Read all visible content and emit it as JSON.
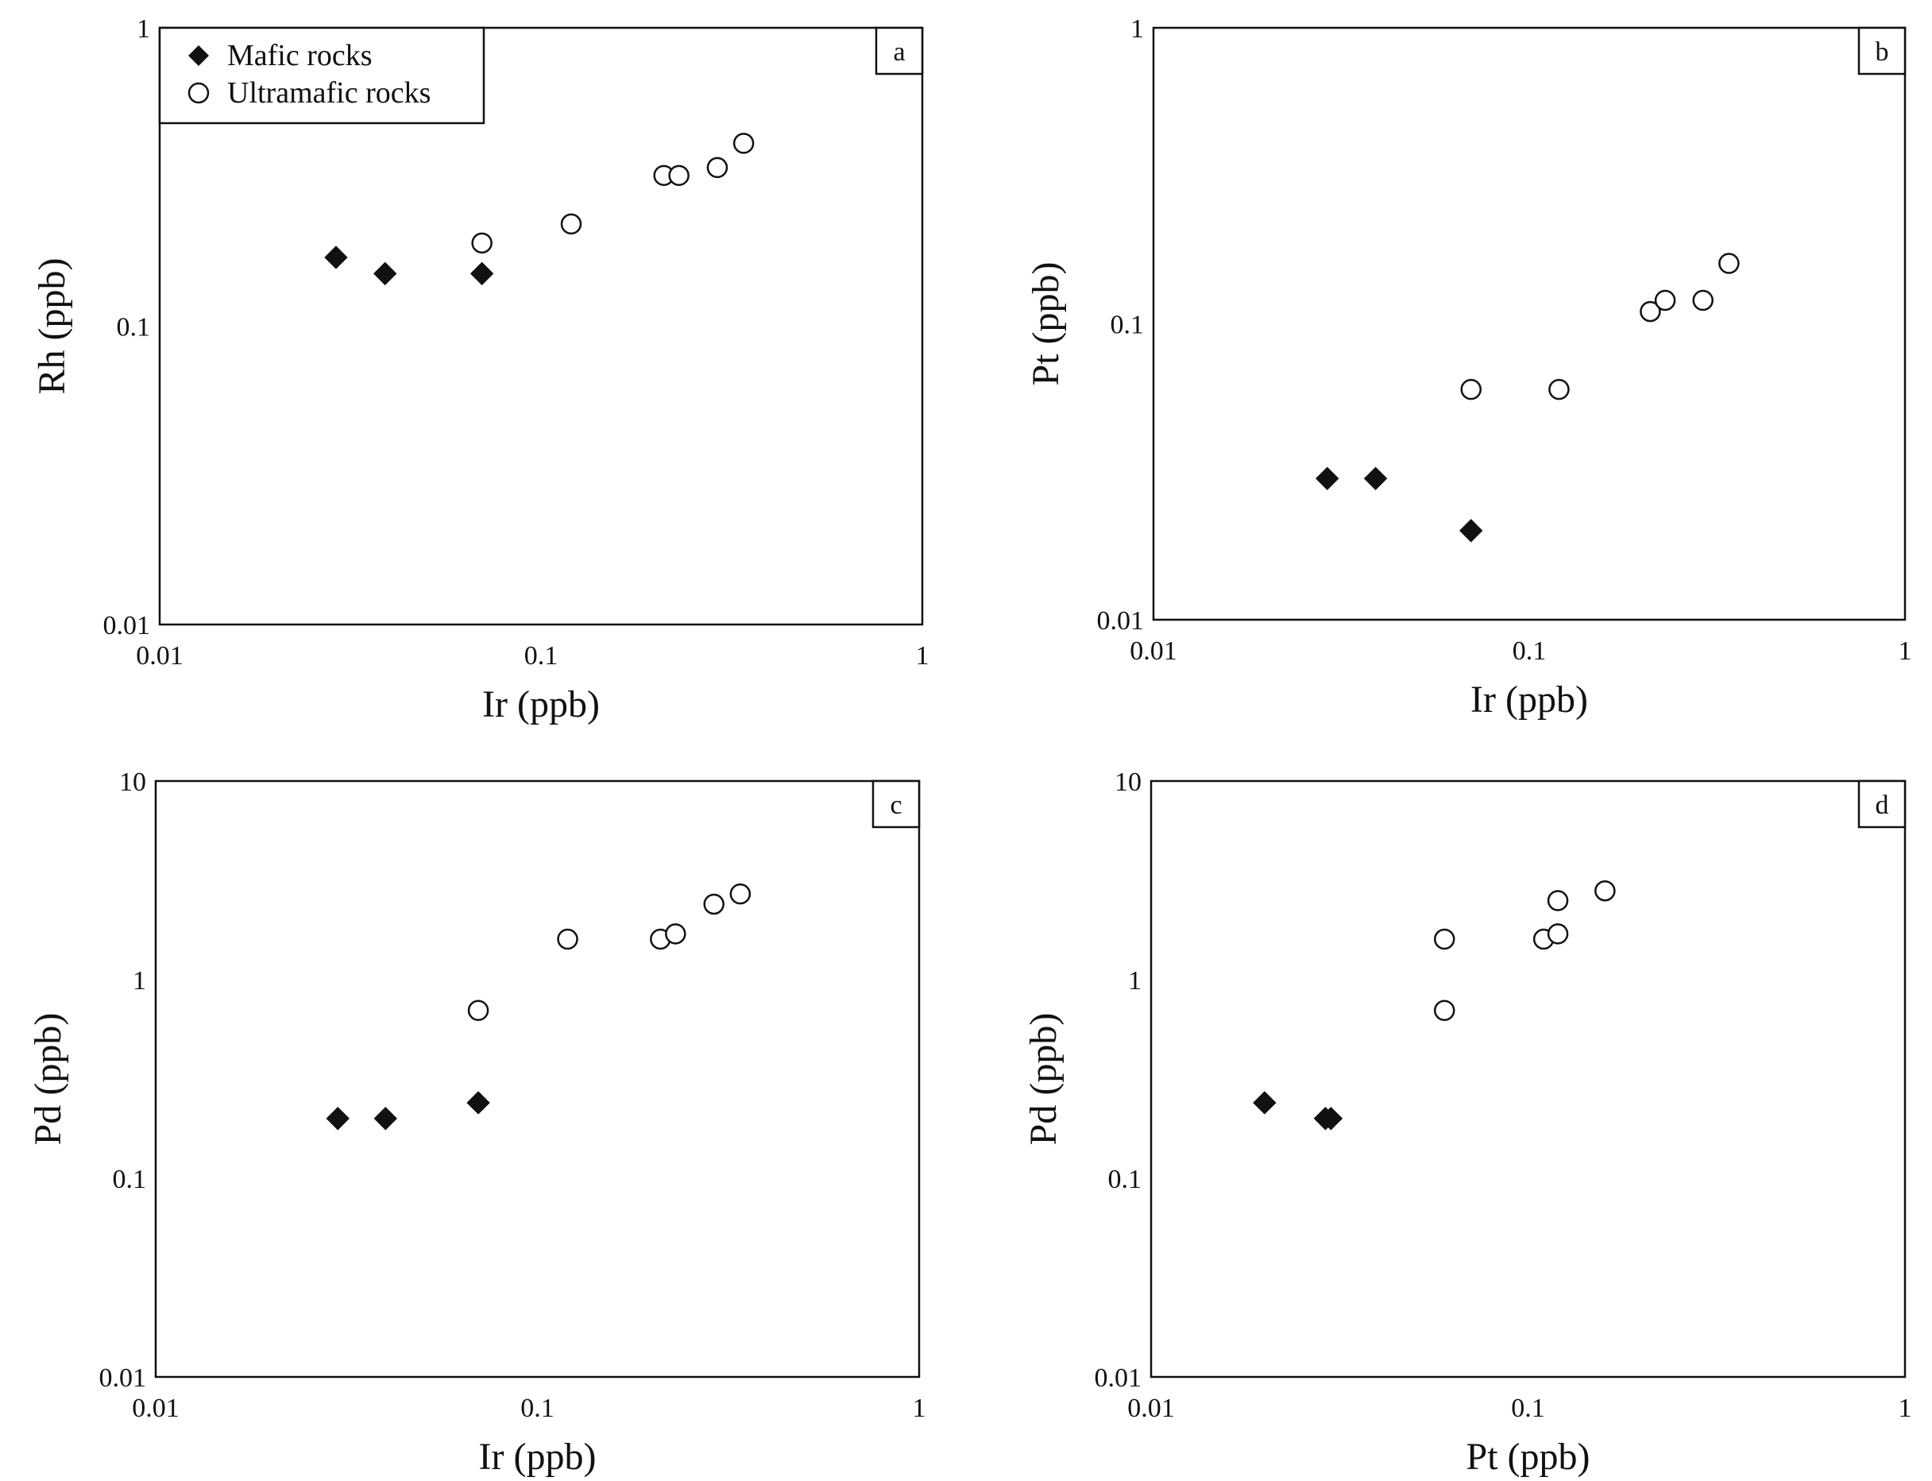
{
  "legend": {
    "mafic_label": "Mafic rocks",
    "ultramafic_label": "Ultramafic rocks"
  },
  "chart_data": [
    {
      "type": "scatter",
      "panel": "a",
      "xlabel": "Ir (ppb)",
      "ylabel": "Rh (ppb)",
      "xscale": "log",
      "yscale": "log",
      "xlim": [
        0.01,
        1
      ],
      "ylim": [
        0.01,
        1
      ],
      "xticks": [
        "0.01",
        "0.1",
        "1"
      ],
      "yticks": [
        "0.01",
        "0.1",
        "1"
      ],
      "legend_position": "top-left",
      "series": [
        {
          "name": "Mafic rocks",
          "marker": "filled-diamond",
          "x": [
            0.029,
            0.039,
            0.07
          ],
          "y": [
            0.17,
            0.15,
            0.15
          ]
        },
        {
          "name": "Ultramafic rocks",
          "marker": "open-circle",
          "x": [
            0.07,
            0.12,
            0.21,
            0.23,
            0.29,
            0.34
          ],
          "y": [
            0.19,
            0.22,
            0.32,
            0.32,
            0.34,
            0.41
          ]
        }
      ]
    },
    {
      "type": "scatter",
      "panel": "b",
      "xlabel": "Ir (ppb)",
      "ylabel": "Pt (ppb)",
      "xscale": "log",
      "yscale": "log",
      "xlim": [
        0.01,
        1
      ],
      "ylim": [
        0.01,
        1
      ],
      "xticks": [
        "0.01",
        "0.1",
        "1"
      ],
      "yticks": [
        "0.01",
        "0.1",
        "1"
      ],
      "series": [
        {
          "name": "Mafic rocks",
          "marker": "filled-diamond",
          "x": [
            0.029,
            0.039,
            0.07
          ],
          "y": [
            0.03,
            0.03,
            0.02
          ]
        },
        {
          "name": "Ultramafic rocks",
          "marker": "open-circle",
          "x": [
            0.07,
            0.12,
            0.21,
            0.23,
            0.29,
            0.34
          ],
          "y": [
            0.06,
            0.06,
            0.11,
            0.12,
            0.12,
            0.16
          ]
        }
      ]
    },
    {
      "type": "scatter",
      "panel": "c",
      "xlabel": "Ir (ppb)",
      "ylabel": "Pd (ppb)",
      "xscale": "log",
      "yscale": "log",
      "xlim": [
        0.01,
        1
      ],
      "ylim": [
        0.01,
        10
      ],
      "xticks": [
        "0.01",
        "0.1",
        "1"
      ],
      "yticks": [
        "0.01",
        "0.1",
        "1",
        "10"
      ],
      "series": [
        {
          "name": "Mafic rocks",
          "marker": "filled-diamond",
          "x": [
            0.03,
            0.04,
            0.07
          ],
          "y": [
            0.2,
            0.2,
            0.24
          ]
        },
        {
          "name": "Ultramafic rocks",
          "marker": "open-circle",
          "x": [
            0.07,
            0.12,
            0.21,
            0.23,
            0.29,
            0.34
          ],
          "y": [
            0.7,
            1.6,
            1.6,
            1.7,
            2.4,
            2.7
          ]
        }
      ]
    },
    {
      "type": "scatter",
      "panel": "d",
      "xlabel": "Pt (ppb)",
      "ylabel": "Pd (ppb)",
      "xscale": "log",
      "yscale": "log",
      "xlim": [
        0.01,
        1
      ],
      "ylim": [
        0.01,
        10
      ],
      "xticks": [
        "0.01",
        "0.1",
        "1"
      ],
      "yticks": [
        "0.01",
        "0.1",
        "1",
        "10"
      ],
      "series": [
        {
          "name": "Mafic rocks",
          "marker": "filled-diamond",
          "x": [
            0.02,
            0.029,
            0.03
          ],
          "y": [
            0.24,
            0.2,
            0.2
          ]
        },
        {
          "name": "Ultramafic rocks",
          "marker": "open-circle",
          "x": [
            0.06,
            0.06,
            0.11,
            0.12,
            0.12,
            0.16
          ],
          "y": [
            1.6,
            0.7,
            1.6,
            1.7,
            2.5,
            2.8
          ]
        }
      ]
    }
  ]
}
